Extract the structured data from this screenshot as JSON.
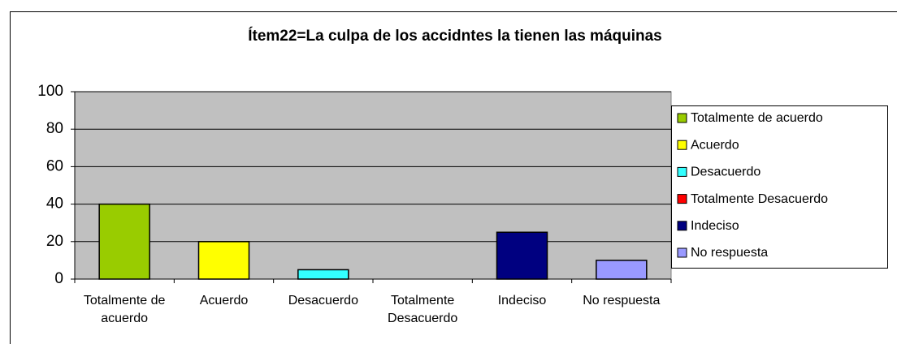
{
  "chart_data": {
    "type": "bar",
    "title": "Ítem22=La culpa de los accidntes la tienen las máquinas",
    "categories": [
      "Totalmente de acuerdo",
      "Acuerdo",
      "Desacuerdo",
      "Totalmente Desacuerdo",
      "Indeciso",
      "No respuesta"
    ],
    "values": [
      40,
      20,
      5,
      0,
      25,
      10
    ],
    "colors": [
      "#99cc00",
      "#ffff00",
      "#33ffff",
      "#ff0000",
      "#000080",
      "#9999ff"
    ],
    "ylim": [
      0,
      100
    ],
    "yticks": [
      0,
      20,
      40,
      60,
      80,
      100
    ],
    "grid": true,
    "legend": "right"
  }
}
